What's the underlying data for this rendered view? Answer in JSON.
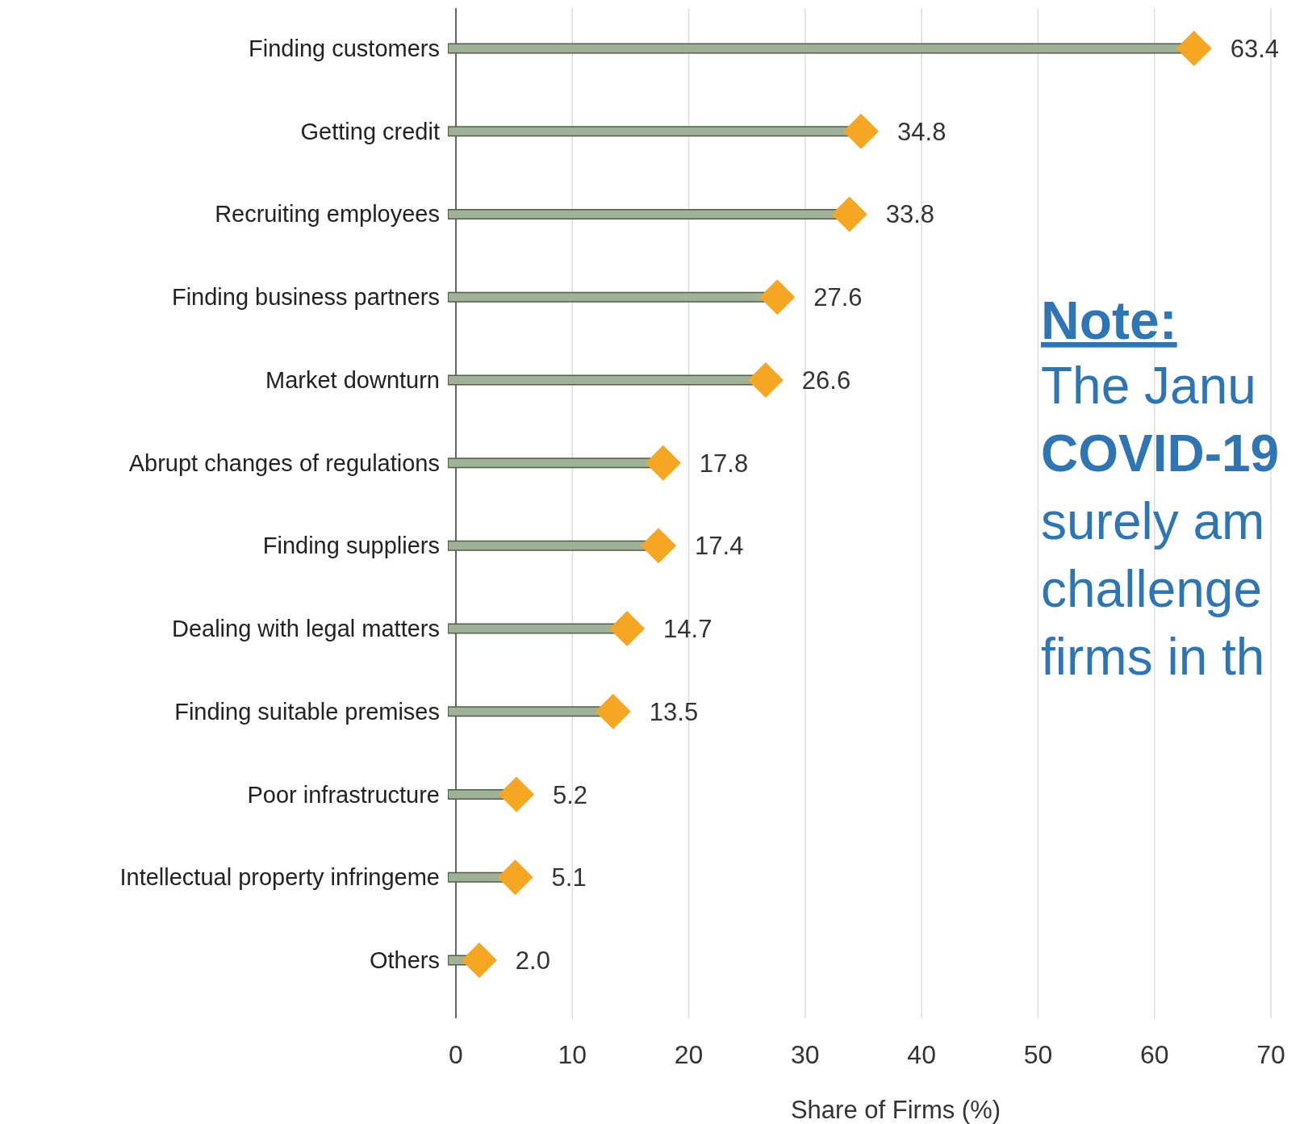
{
  "chart_data": {
    "type": "lollipop",
    "orientation": "horizontal",
    "xlabel": "Share of Firms (%)",
    "categories": [
      "Finding customers",
      "Getting credit",
      "Recruiting employees",
      "Finding business partners",
      "Market downturn",
      "Abrupt changes of regulations",
      "Finding suppliers",
      "Dealing with legal matters",
      "Finding suitable premises",
      "Poor infrastructure",
      "Intellectual property infringeme",
      "Others"
    ],
    "series": [
      {
        "color": "#f5a623",
        "values": [
          63.4,
          34.8,
          33.8,
          27.6,
          26.6,
          17.8,
          17.4,
          14.7,
          13.5,
          5.2,
          5.1,
          2.0
        ],
        "value_labels": [
          "63.4",
          "34.8",
          "33.8",
          "27.6",
          "26.6",
          "17.8",
          "17.4",
          "14.7",
          "13.5",
          "5.2",
          "5.1",
          "2.0"
        ]
      }
    ],
    "xlim": [
      0,
      70
    ],
    "xticks": [
      0,
      10,
      20,
      30,
      40,
      50,
      60,
      70
    ],
    "grid": "x",
    "marker": "diamond",
    "annotations": [
      "Note:",
      "The Janu",
      "COVID-19",
      "surely am",
      "challenge",
      "firms in th"
    ]
  }
}
